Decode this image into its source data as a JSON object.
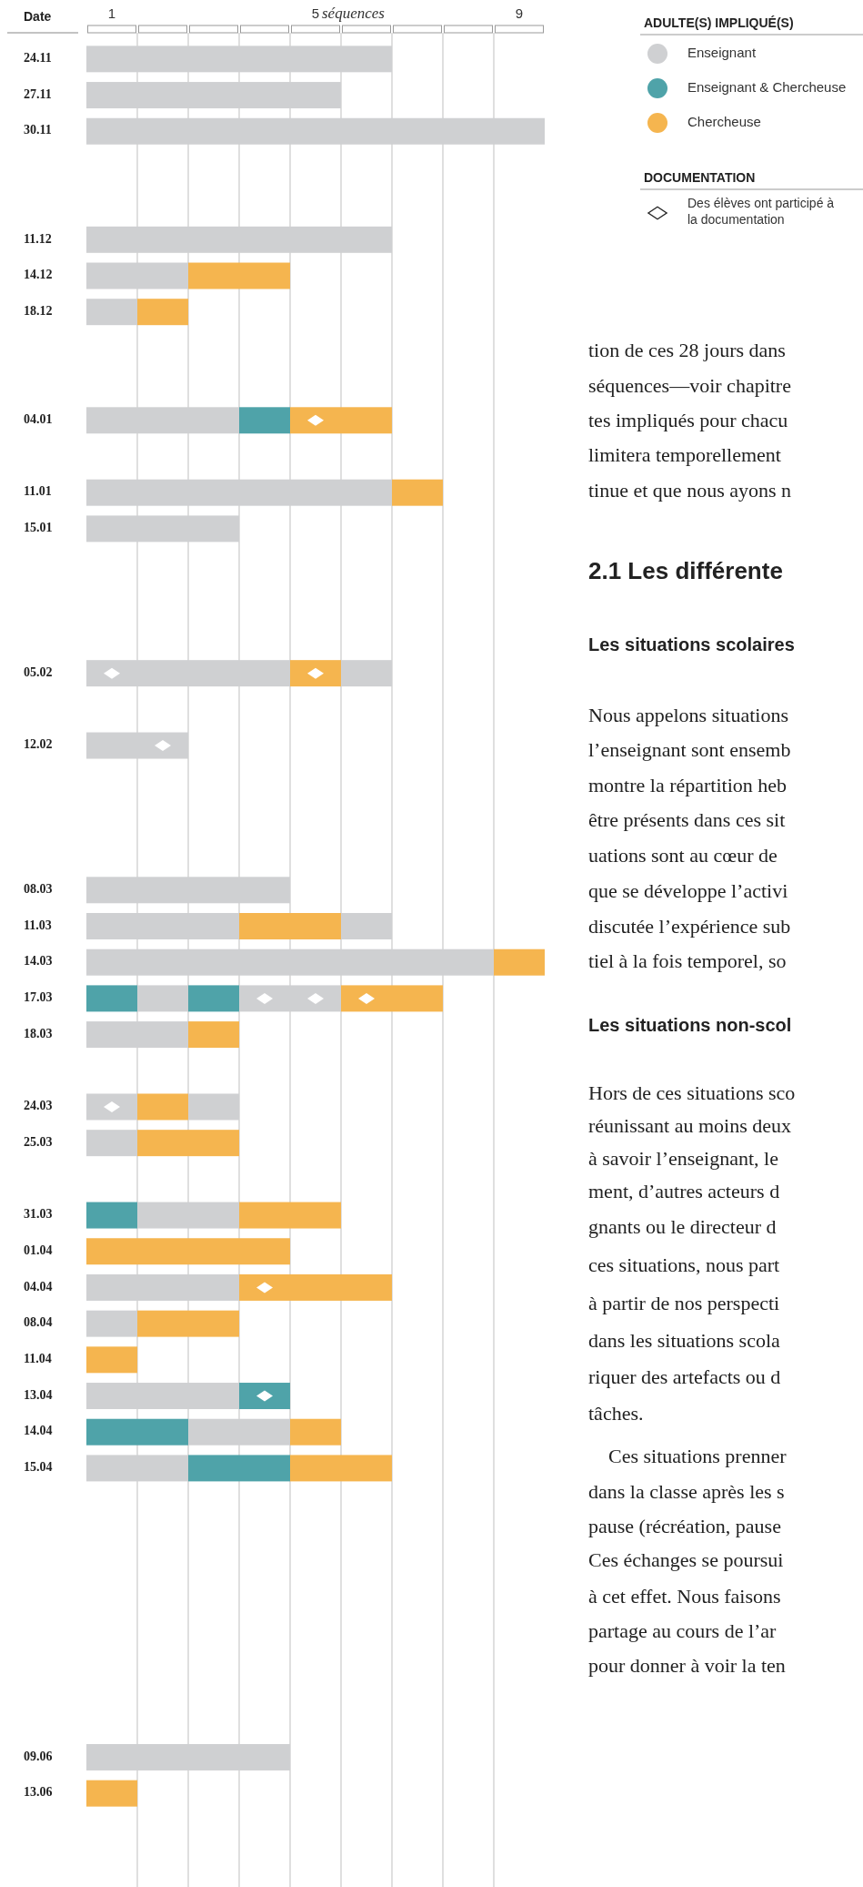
{
  "chart_data": {
    "type": "bar",
    "orientation": "horizontal",
    "xlabel": "séquences",
    "ylabel": "Date",
    "legend_title": "ADULTE(S) IMPLIQUÉ(S)",
    "legend": "top right",
    "grid": "x",
    "xlim": [
      0,
      9
    ],
    "xticks": [
      {
        "value": 0.5,
        "label": "1"
      },
      {
        "value": 1,
        "label": null
      },
      {
        "value": 2,
        "label": null
      },
      {
        "value": 3,
        "label": null
      },
      {
        "value": 4,
        "label": null
      },
      {
        "value": 4.5,
        "label": "5"
      },
      {
        "value": 5,
        "label": null
      },
      {
        "value": 6,
        "label": null
      },
      {
        "value": 7,
        "label": null
      },
      {
        "value": 8,
        "label": null
      },
      {
        "value": 8.5,
        "label": "9"
      }
    ],
    "categories": [
      "24.11",
      "27.11",
      "30.11",
      null,
      null,
      "11.12",
      "14.12",
      "18.12",
      null,
      null,
      "04.01",
      null,
      "11.01",
      "15.01",
      null,
      null,
      null,
      "05.02",
      null,
      "12.02",
      null,
      null,
      null,
      "08.03",
      "11.03",
      "14.03",
      "17.03",
      "18.03",
      null,
      "24.03",
      "25.03",
      null,
      "31.03",
      "01.04",
      "04.04",
      "08.04",
      "11.04",
      "13.04",
      "14.04",
      "15.04",
      null,
      null,
      null,
      null,
      null,
      null,
      null,
      "09.06",
      "13.06"
    ],
    "series": [
      {
        "name": "Enseignant",
        "color": "#cfd0d2",
        "values": [
          6,
          5,
          9,
          null,
          null,
          6,
          2,
          1,
          null,
          null,
          3,
          null,
          6,
          3,
          null,
          null,
          null,
          4,
          null,
          2,
          null,
          null,
          null,
          4,
          3,
          8,
          1,
          2,
          null,
          1,
          1,
          null,
          2,
          null,
          3,
          1,
          null,
          3,
          2,
          2,
          null,
          null,
          null,
          null,
          null,
          null,
          null,
          4,
          null
        ],
        "base": [
          0,
          0,
          0,
          null,
          null,
          0,
          0,
          0,
          null,
          null,
          0,
          null,
          0,
          0,
          null,
          null,
          null,
          0,
          null,
          0,
          null,
          null,
          null,
          0,
          0,
          0,
          1,
          0,
          null,
          0,
          0,
          null,
          1,
          null,
          0,
          0,
          null,
          0,
          2,
          0,
          null,
          null,
          null,
          null,
          null,
          null,
          null,
          0,
          null
        ]
      },
      {
        "color": "#cfd0d2",
        "values": [
          null,
          null,
          null,
          null,
          null,
          null,
          null,
          null,
          null,
          null,
          null,
          null,
          null,
          null,
          null,
          null,
          null,
          1,
          null,
          null,
          null,
          null,
          null,
          null,
          1,
          null,
          2,
          null,
          null,
          1,
          null,
          null,
          null,
          null,
          null,
          null,
          null,
          null,
          null,
          null,
          null,
          null,
          null,
          null,
          null,
          null,
          null,
          null,
          null
        ],
        "base": [
          null,
          null,
          null,
          null,
          null,
          null,
          null,
          null,
          null,
          null,
          null,
          null,
          null,
          null,
          null,
          null,
          null,
          5,
          null,
          null,
          null,
          null,
          null,
          null,
          5,
          null,
          3,
          null,
          null,
          2,
          null,
          null,
          null,
          null,
          null,
          null,
          null,
          null,
          null,
          null,
          null,
          null,
          null,
          null,
          null,
          null,
          null,
          null,
          null
        ]
      },
      {
        "name": "Enseignant & Chercheuse",
        "color": "#4fa3a9",
        "values": [
          null,
          null,
          null,
          null,
          null,
          null,
          null,
          null,
          null,
          null,
          1,
          null,
          null,
          null,
          null,
          null,
          null,
          null,
          null,
          null,
          null,
          null,
          null,
          null,
          null,
          null,
          1,
          null,
          null,
          null,
          null,
          null,
          1,
          null,
          null,
          null,
          null,
          1,
          2,
          2,
          null,
          null,
          null,
          null,
          null,
          null,
          null,
          null,
          null
        ],
        "base": [
          null,
          null,
          null,
          null,
          null,
          null,
          null,
          null,
          null,
          null,
          3,
          null,
          null,
          null,
          null,
          null,
          null,
          null,
          null,
          null,
          null,
          null,
          null,
          null,
          null,
          null,
          0,
          null,
          null,
          null,
          null,
          null,
          0,
          null,
          null,
          null,
          null,
          3,
          0,
          2,
          null,
          null,
          null,
          null,
          null,
          null,
          null,
          null,
          null
        ]
      },
      {
        "color": "#4fa3a9",
        "values": [
          null,
          null,
          null,
          null,
          null,
          null,
          null,
          null,
          null,
          null,
          null,
          null,
          null,
          null,
          null,
          null,
          null,
          null,
          null,
          null,
          null,
          null,
          null,
          null,
          null,
          null,
          1,
          null,
          null,
          null,
          null,
          null,
          null,
          null,
          null,
          null,
          null,
          null,
          null,
          null,
          null,
          null,
          null,
          null,
          null,
          null,
          null,
          null,
          null
        ],
        "base": [
          null,
          null,
          null,
          null,
          null,
          null,
          null,
          null,
          null,
          null,
          null,
          null,
          null,
          null,
          null,
          null,
          null,
          null,
          null,
          null,
          null,
          null,
          null,
          null,
          null,
          null,
          2,
          null,
          null,
          null,
          null,
          null,
          null,
          null,
          null,
          null,
          null,
          null,
          null,
          null,
          null,
          null,
          null,
          null,
          null,
          null,
          null,
          null,
          null
        ]
      },
      {
        "name": "Chercheuse",
        "color": "#f5b54f",
        "values": [
          null,
          null,
          null,
          null,
          null,
          null,
          2,
          1,
          null,
          null,
          2,
          null,
          1,
          null,
          null,
          null,
          null,
          1,
          null,
          null,
          null,
          null,
          null,
          null,
          2,
          1,
          2,
          1,
          null,
          1,
          2,
          null,
          2,
          4,
          3,
          2,
          1,
          null,
          1,
          2,
          null,
          null,
          null,
          null,
          null,
          null,
          null,
          null,
          1
        ],
        "base": [
          null,
          null,
          null,
          null,
          null,
          null,
          2,
          1,
          null,
          null,
          4,
          null,
          6,
          null,
          null,
          null,
          null,
          4,
          null,
          null,
          null,
          null,
          null,
          null,
          3,
          8,
          5,
          2,
          null,
          1,
          1,
          null,
          3,
          0,
          3,
          1,
          0,
          null,
          4,
          4,
          null,
          null,
          null,
          null,
          null,
          null,
          null,
          null,
          0
        ]
      },
      {
        "type": "scatter",
        "name": "Des élèves ont participé à la documentation",
        "color": "#ffffff",
        "marker": "diamond",
        "x": [
          "04.01",
          "05.02",
          "05.02",
          "12.02",
          "17.03",
          "17.03",
          "17.03",
          "24.03",
          "04.04",
          "13.04"
        ],
        "values": [
          4.5,
          0.5,
          4.5,
          1.5,
          3.5,
          4.5,
          5.5,
          0.5,
          3.5,
          3.5
        ]
      }
    ],
    "annotations": [
      "DOCUMENTATION",
      "tion de ces 28 jours dans",
      "séquences—voir chapitre",
      "tes impliqués pour chacu",
      "limitera temporellement",
      "tinue et que nous ayons n",
      "2.1 Les différente",
      "Les situations scolaires",
      "Nous appelons situations",
      "l’enseignant sont ensemb",
      "montre la répartition heb",
      "être présents dans ces sit",
      "uations sont au cœur de",
      "que se développe l’activi",
      "discutée l’expérience sub",
      "tiel à la fois temporel, so",
      "Les situations non-scol",
      "Hors de ces situations sco",
      "réunissant au moins deux",
      "à savoir l’enseignant, le",
      "ment, d’autres acteurs d",
      "gnants ou le directeur d",
      "ces situations, nous part",
      "à partir de nos perspecti",
      "dans les situations scola",
      "riquer des artefacts ou d",
      "tâches.",
      "Ces situations prenner",
      "dans la classe après les s",
      "pause (récréation, pause",
      "Ces échanges se poursui",
      "à cet effet. Nous faisons",
      "partage au cours de l’ar",
      "pour donner à voir la ten"
    ]
  }
}
